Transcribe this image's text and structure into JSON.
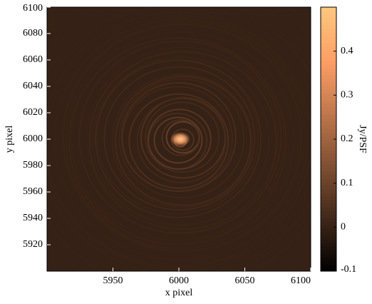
{
  "chart_data": {
    "type": "image",
    "xlabel": "x pixel",
    "ylabel": "y pixel",
    "xlim": [
      5900,
      6100
    ],
    "xticks": [
      5950,
      6000,
      6050,
      6100
    ],
    "ylim": [
      5900,
      6100
    ],
    "yticks": [
      5920,
      5940,
      5960,
      5980,
      6000,
      6020,
      6040,
      6060,
      6080,
      6100
    ],
    "colorbar": {
      "label": "Jy/PSF",
      "colormap": "copper",
      "lim": [
        -0.1,
        0.5
      ],
      "ticks": [
        -0.1,
        0,
        0.1,
        0.2,
        0.3,
        0.4
      ]
    }
  }
}
